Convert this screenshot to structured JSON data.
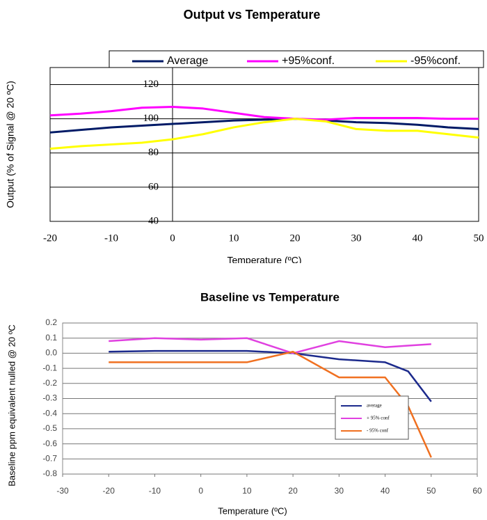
{
  "chart_data": [
    {
      "type": "line",
      "title": "Output vs Temperature",
      "x_label": "Temperature (ºC)",
      "y_label": "Output (% of Signal @ 20 ºC)",
      "x": [
        -20,
        -15,
        -10,
        -5,
        0,
        5,
        10,
        15,
        20,
        25,
        30,
        35,
        40,
        45,
        50
      ],
      "series": [
        {
          "name": "Average",
          "color": "#001a66",
          "values": [
            92,
            93.5,
            95,
            96,
            97,
            98,
            99,
            99.5,
            100,
            99,
            98,
            97.5,
            96.5,
            95,
            94
          ]
        },
        {
          "name": "+95%conf.",
          "color": "#ff00ff",
          "values": [
            102,
            103,
            104.5,
            106.5,
            107,
            106,
            103.5,
            101,
            100,
            99.5,
            100.5,
            100.5,
            100.5,
            100,
            100
          ]
        },
        {
          "name": "-95%conf.",
          "color": "#ffff00",
          "values": [
            82.5,
            84,
            85,
            86,
            88,
            91,
            95,
            98,
            100,
            98.5,
            94,
            93,
            93,
            91,
            89
          ]
        }
      ],
      "xlim": [
        -20,
        50
      ],
      "xticks": [
        -20,
        -10,
        0,
        10,
        20,
        30,
        40,
        50
      ],
      "ylim": [
        40,
        130
      ],
      "yticks": [
        40,
        60,
        80,
        100,
        120
      ],
      "y_axis_position": 0,
      "grid": true,
      "legend": "top"
    },
    {
      "type": "line",
      "title": "Baseline vs Temperature",
      "x_label": "Temperature (ºC)",
      "y_label": "Baseline ppm equivalent nulled @ 20 ºC",
      "x": [
        -20,
        -10,
        0,
        10,
        20,
        30,
        40,
        45,
        50
      ],
      "series": [
        {
          "name": "average",
          "color": "#1c2a8c",
          "values": [
            0.01,
            0.015,
            0.015,
            0.015,
            0,
            -0.04,
            -0.06,
            -0.12,
            -0.32
          ]
        },
        {
          "name": "+ 95% conf",
          "color": "#e040e0",
          "values": [
            0.08,
            0.1,
            0.09,
            0.1,
            0,
            0.08,
            0.04,
            0.05,
            0.06
          ]
        },
        {
          "name": "- 95% conf",
          "color": "#f07020",
          "values": [
            -0.06,
            -0.06,
            -0.06,
            -0.06,
            0.01,
            -0.16,
            -0.16,
            -0.35,
            -0.69
          ]
        }
      ],
      "xlim": [
        -30,
        60
      ],
      "xticks": [
        -30,
        -20,
        -10,
        0,
        10,
        20,
        30,
        40,
        50,
        60
      ],
      "ylim": [
        -0.8,
        0.2
      ],
      "yticks": [
        0.2,
        0.1,
        {
          "value": 0,
          "label": "0.0"
        },
        -0.1,
        -0.2,
        -0.3,
        -0.4,
        -0.5,
        -0.6,
        -0.7,
        -0.8
      ],
      "grid": true,
      "legend": "bottom-right"
    }
  ]
}
